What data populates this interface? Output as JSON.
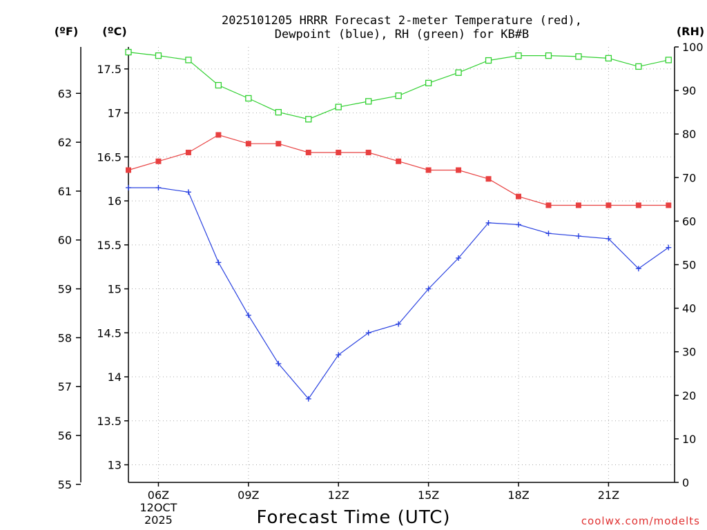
{
  "chart_data": {
    "type": "line",
    "title_line1": "2025101205 HRRR Forecast 2-meter Temperature (red),",
    "title_line2": "Dewpoint (blue), RH (green) for KB#B",
    "xlabel": "Forecast Time (UTC)",
    "watermark": "coolwx.com/modelts",
    "units": {
      "fahrenheit": "(ºF)",
      "celsius": "(ºC)",
      "rh": "(RH)"
    },
    "x_hours": [
      5,
      6,
      7,
      8,
      9,
      10,
      11,
      12,
      13,
      14,
      15,
      16,
      17,
      18,
      19,
      20,
      21,
      22,
      23
    ],
    "x_range": [
      5,
      23.2
    ],
    "x_ticks": [
      {
        "hour": 6,
        "label": "06Z",
        "sub1": "12OCT",
        "sub2": "2025"
      },
      {
        "hour": 9,
        "label": "09Z"
      },
      {
        "hour": 12,
        "label": "12Z"
      },
      {
        "hour": 15,
        "label": "15Z"
      },
      {
        "hour": 18,
        "label": "18Z"
      },
      {
        "hour": 21,
        "label": "21Z"
      }
    ],
    "celsius_axis": {
      "ylim": [
        12.8,
        17.75
      ],
      "ticks": [
        "13",
        "13.5",
        "14",
        "14.5",
        "15",
        "15.5",
        "16",
        "16.5",
        "17",
        "17.5"
      ]
    },
    "fahrenheit_axis": {
      "ylim": [
        55.04,
        63.95
      ],
      "ticks": [
        "55",
        "56",
        "57",
        "58",
        "59",
        "60",
        "61",
        "62",
        "63"
      ]
    },
    "rh_axis": {
      "ylim": [
        0,
        100
      ],
      "ticks": [
        "0",
        "10",
        "20",
        "30",
        "40",
        "50",
        "60",
        "70",
        "80",
        "90",
        "100"
      ]
    },
    "series": [
      {
        "name": "Temperature",
        "color": "#e84040",
        "axis": "celsius",
        "marker": "filled-square",
        "values": [
          16.35,
          16.45,
          16.55,
          16.75,
          16.65,
          16.65,
          16.55,
          16.55,
          16.55,
          16.45,
          16.35,
          16.35,
          16.25,
          16.05,
          15.95,
          15.95,
          15.95,
          15.95,
          15.95
        ]
      },
      {
        "name": "Dewpoint",
        "color": "#2840e0",
        "axis": "celsius",
        "marker": "plus",
        "values": [
          16.15,
          16.15,
          16.1,
          15.3,
          14.7,
          14.15,
          13.75,
          14.25,
          14.5,
          14.6,
          15.0,
          15.35,
          15.75,
          15.73,
          15.63,
          15.6,
          15.57,
          15.23,
          15.47
        ]
      },
      {
        "name": "RH",
        "color": "#30d030",
        "axis": "rh",
        "marker": "open-square",
        "values": [
          98.8,
          98.0,
          97.0,
          91.2,
          88.2,
          85.0,
          83.4,
          86.2,
          87.5,
          88.8,
          91.7,
          94.1,
          96.9,
          98.0,
          98.0,
          97.8,
          97.4,
          95.5,
          97.0
        ]
      }
    ]
  }
}
